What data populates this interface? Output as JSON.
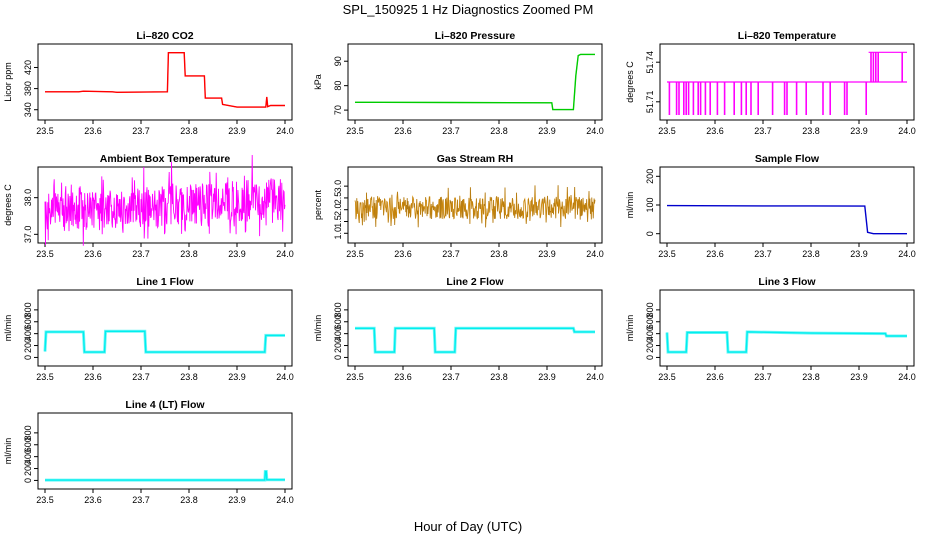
{
  "figure": {
    "title": "SPL_150925  1 Hz Diagnostics Zoomed PM",
    "xlabel": "Hour of Day (UTC)"
  },
  "chart_data": [
    {
      "id": "co2",
      "type": "line",
      "title": "Li–820 CO2",
      "ylabel": "Licor ppm",
      "color": "#ff0000",
      "xlim": [
        23.5,
        24.0
      ],
      "ylim": [
        330,
        455
      ],
      "xticks": [
        23.5,
        23.6,
        23.7,
        23.8,
        23.9,
        24.0
      ],
      "xtick_labels": [
        "23.5",
        "23.6",
        "23.7",
        "23.8",
        "23.9",
        "24.0"
      ],
      "yticks": [
        340,
        380,
        420
      ],
      "ytick_labels": [
        "340",
        "380",
        "420"
      ],
      "series": [
        {
          "x": [
            23.5,
            23.57,
            23.58,
            23.64,
            23.65,
            23.755,
            23.757,
            23.79,
            23.792,
            23.832,
            23.834,
            23.868,
            23.87,
            23.9,
            23.96,
            23.962,
            23.964,
            23.97,
            24.0
          ],
          "y": [
            374,
            374,
            375,
            374,
            373,
            374,
            448,
            448,
            404,
            404,
            362,
            362,
            350,
            345,
            345,
            364,
            346,
            348,
            348
          ]
        }
      ]
    },
    {
      "id": "pressure",
      "type": "line",
      "title": "Li–820 Pressure",
      "ylabel": "kPa",
      "color": "#00cc00",
      "xlim": [
        23.5,
        24.0
      ],
      "ylim": [
        68,
        95
      ],
      "xticks": [
        23.5,
        23.6,
        23.7,
        23.8,
        23.9,
        24.0
      ],
      "xtick_labels": [
        "23.5",
        "23.6",
        "23.7",
        "23.8",
        "23.9",
        "24.0"
      ],
      "yticks": [
        70,
        80,
        90
      ],
      "ytick_labels": [
        "70",
        "80",
        "90"
      ],
      "series": [
        {
          "x": [
            23.5,
            23.7,
            23.91,
            23.912,
            23.955,
            23.96,
            23.965,
            23.97,
            24.0
          ],
          "y": [
            73.2,
            73.1,
            73.0,
            70.2,
            70.2,
            84,
            92.3,
            92.8,
            92.8
          ]
        }
      ]
    },
    {
      "id": "licor_temp",
      "type": "line",
      "title": "Li–820 Temperature",
      "ylabel": "degrees C",
      "color": "#ff00ff",
      "xlim": [
        23.5,
        24.0
      ],
      "ylim": [
        51.7,
        51.75
      ],
      "xticks": [
        23.5,
        23.6,
        23.7,
        23.8,
        23.9,
        24.0
      ],
      "xtick_labels": [
        "23.5",
        "23.6",
        "23.7",
        "23.8",
        "23.9",
        "24.0"
      ],
      "yticks": [
        51.71,
        51.74
      ],
      "ytick_labels": [
        "51.71",
        "51.74"
      ],
      "baseline": 51.725,
      "low": 51.7,
      "high": 51.7475,
      "spikes_down": [
        23.505,
        23.52,
        23.525,
        23.535,
        23.54,
        23.545,
        23.555,
        23.565,
        23.57,
        23.58,
        23.59,
        23.605,
        23.62,
        23.64,
        23.655,
        23.665,
        23.675,
        23.69,
        23.72,
        23.745,
        23.75,
        23.77,
        23.79,
        23.825,
        23.84,
        23.87,
        23.875,
        23.915
      ],
      "spikes_up": [
        23.925,
        23.93,
        23.935,
        23.94,
        23.99
      ],
      "upper_region": [
        23.92,
        24.0
      ]
    },
    {
      "id": "box_temp",
      "type": "line",
      "title": "Ambient Box Temperature",
      "ylabel": "degrees C",
      "color": "#ff00ff",
      "xlim": [
        23.5,
        24.0
      ],
      "ylim": [
        36.9,
        38.7
      ],
      "xticks": [
        23.5,
        23.6,
        23.7,
        23.8,
        23.9,
        24.0
      ],
      "xtick_labels": [
        "23.5",
        "23.6",
        "23.7",
        "23.8",
        "23.9",
        "24.0"
      ],
      "yticks": [
        37.0,
        38.0
      ],
      "ytick_labels": [
        "37.0",
        "38.0"
      ],
      "band": {
        "x": [
          23.5,
          24.0
        ],
        "low": [
          37.05,
          37.4
        ],
        "high": [
          38.1,
          38.55
        ]
      }
    },
    {
      "id": "rh",
      "type": "line",
      "title": "Gas Stream RH",
      "ylabel": "percent",
      "color": "#e69500",
      "xlim": [
        23.5,
        24.0
      ],
      "ylim": [
        0.8,
        3.6
      ],
      "xticks": [
        23.5,
        23.6,
        23.7,
        23.8,
        23.9,
        24.0
      ],
      "xtick_labels": [
        "23.5",
        "23.6",
        "23.7",
        "23.8",
        "23.9",
        "24.0"
      ],
      "yticks": [
        1.0,
        1.5,
        2.0,
        2.5,
        3.0
      ],
      "ytick_labels": [
        "1.0",
        "1.5",
        "2.0",
        "2.5",
        "3.0"
      ],
      "band": {
        "x": [
          23.5,
          24.0
        ],
        "low": [
          1.6,
          1.6
        ],
        "high": [
          2.55,
          2.55
        ]
      }
    },
    {
      "id": "sample_flow",
      "type": "line",
      "title": "Sample Flow",
      "ylabel": "ml/min",
      "color": "#0000cc",
      "xlim": [
        23.5,
        24.0
      ],
      "ylim": [
        -15,
        215
      ],
      "xticks": [
        23.5,
        23.6,
        23.7,
        23.8,
        23.9,
        24.0
      ],
      "xtick_labels": [
        "23.5",
        "23.6",
        "23.7",
        "23.8",
        "23.9",
        "24.0"
      ],
      "yticks": [
        0,
        100,
        200
      ],
      "ytick_labels": [
        "0",
        "100",
        "200"
      ],
      "series": [
        {
          "x": [
            23.5,
            23.7,
            23.8,
            23.912,
            23.918,
            23.93,
            23.96,
            24.0
          ],
          "y": [
            98,
            97,
            97,
            96,
            5,
            0,
            0,
            0
          ]
        }
      ]
    },
    {
      "id": "line1",
      "type": "line",
      "title": "Line 1 Flow",
      "ylabel": "ml/min",
      "color": "#00eeee",
      "xlim": [
        23.5,
        24.0
      ],
      "ylim": [
        -60,
        1050
      ],
      "xticks": [
        23.5,
        23.6,
        23.7,
        23.8,
        23.9,
        24.0
      ],
      "xtick_labels": [
        "23.5",
        "23.6",
        "23.7",
        "23.8",
        "23.9",
        "24.0"
      ],
      "yticks": [
        0,
        200,
        400,
        600,
        800
      ],
      "ytick_labels": [
        "0",
        "200",
        "400",
        "600",
        "800"
      ],
      "series": [
        {
          "x": [
            23.5,
            23.502,
            23.58,
            23.582,
            23.624,
            23.626,
            23.708,
            23.71,
            23.958,
            23.96,
            24.0
          ],
          "y": [
            100,
            430,
            430,
            90,
            90,
            440,
            440,
            90,
            90,
            370,
            370
          ]
        }
      ]
    },
    {
      "id": "line2",
      "type": "line",
      "title": "Line 2 Flow",
      "ylabel": "ml/min",
      "color": "#00eeee",
      "xlim": [
        23.5,
        24.0
      ],
      "ylim": [
        -60,
        1050
      ],
      "xticks": [
        23.5,
        23.6,
        23.7,
        23.8,
        23.9,
        24.0
      ],
      "xtick_labels": [
        "23.5",
        "23.6",
        "23.7",
        "23.8",
        "23.9",
        "24.0"
      ],
      "yticks": [
        0,
        200,
        400,
        600,
        800
      ],
      "ytick_labels": [
        "0",
        "200",
        "400",
        "600",
        "800"
      ],
      "series": [
        {
          "x": [
            23.5,
            23.54,
            23.542,
            23.582,
            23.584,
            23.665,
            23.667,
            23.708,
            23.71,
            23.955,
            23.957,
            24.0
          ],
          "y": [
            490,
            490,
            90,
            90,
            490,
            490,
            90,
            90,
            490,
            490,
            430,
            430
          ]
        }
      ]
    },
    {
      "id": "line3",
      "type": "line",
      "title": "Line 3 Flow",
      "ylabel": "ml/min",
      "color": "#00eeee",
      "xlim": [
        23.5,
        24.0
      ],
      "ylim": [
        -60,
        1050
      ],
      "xticks": [
        23.5,
        23.6,
        23.7,
        23.8,
        23.9,
        24.0
      ],
      "xtick_labels": [
        "23.5",
        "23.6",
        "23.7",
        "23.8",
        "23.9",
        "24.0"
      ],
      "yticks": [
        0,
        200,
        400,
        600,
        800
      ],
      "ytick_labels": [
        "0",
        "200",
        "400",
        "600",
        "800"
      ],
      "series": [
        {
          "x": [
            23.5,
            23.502,
            23.54,
            23.542,
            23.625,
            23.627,
            23.665,
            23.667,
            23.8,
            23.955,
            23.957,
            24.0
          ],
          "y": [
            420,
            90,
            90,
            420,
            420,
            90,
            90,
            430,
            410,
            400,
            360,
            360
          ]
        }
      ]
    },
    {
      "id": "line4",
      "type": "line",
      "title": "Line 4 (LT) Flow",
      "ylabel": "ml/min",
      "color": "#00eeee",
      "xlim": [
        23.5,
        24.0
      ],
      "ylim": [
        -60,
        1050
      ],
      "xticks": [
        23.5,
        23.6,
        23.7,
        23.8,
        23.9,
        24.0
      ],
      "xtick_labels": [
        "23.5",
        "23.6",
        "23.7",
        "23.8",
        "23.9",
        "24.0"
      ],
      "yticks": [
        0,
        200,
        400,
        600,
        800
      ],
      "ytick_labels": [
        "0",
        "200",
        "400",
        "600",
        "800"
      ],
      "series": [
        {
          "x": [
            23.5,
            23.958,
            23.959,
            23.961,
            23.962,
            24.0
          ],
          "y": [
            5,
            5,
            150,
            150,
            10,
            10
          ]
        }
      ]
    }
  ]
}
